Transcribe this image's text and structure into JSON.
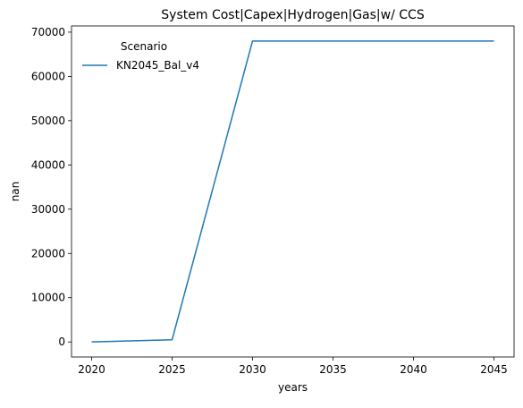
{
  "chart_data": {
    "type": "line",
    "title": "System Cost|Capex|Hydrogen|Gas|w/ CCS",
    "xlabel": "years",
    "ylabel": "nan",
    "x": [
      2020,
      2025,
      2030,
      2035,
      2040,
      2045
    ],
    "series": [
      {
        "name": "KN2045_Bal_v4",
        "color": "#1f77b4",
        "values": [
          0,
          500,
          68000,
          68000,
          68000,
          68000
        ]
      }
    ],
    "xlim": [
      2018.75,
      2046.25
    ],
    "ylim": [
      -3400,
      71400
    ],
    "xticks": [
      2020,
      2025,
      2030,
      2035,
      2040,
      2045
    ],
    "yticks": [
      0,
      10000,
      20000,
      30000,
      40000,
      50000,
      60000,
      70000
    ],
    "legend": {
      "title": "Scenario",
      "placement": "top-left"
    },
    "grid": false
  }
}
